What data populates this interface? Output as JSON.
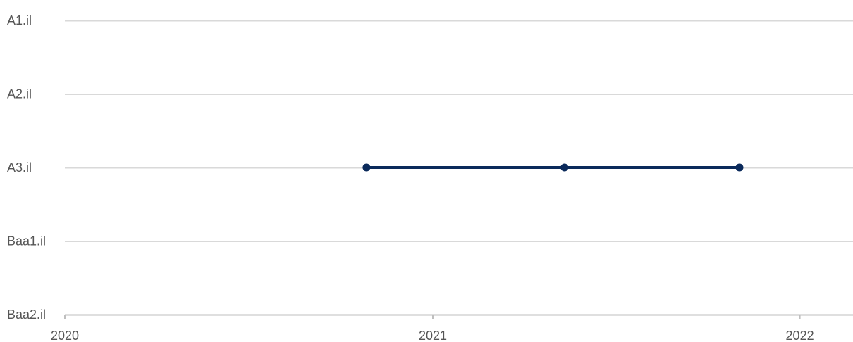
{
  "chart_data": {
    "type": "line",
    "x_type": "date",
    "y_type": "categorical",
    "y_categories": [
      "A1.il",
      "A2.il",
      "A3.il",
      "Baa1.il",
      "Baa2.il"
    ],
    "x_ticks": [
      2020,
      2021,
      2022
    ],
    "x_tick_labels": [
      "2020",
      "2021",
      "2022"
    ],
    "xlim": [
      "2020-01-01",
      "2022-03-01"
    ],
    "series": [
      {
        "color": "#0b2a5b",
        "points": [
          {
            "x": "2020-10-27",
            "y": "A3.il"
          },
          {
            "x": "2021-05-12",
            "y": "A3.il"
          },
          {
            "x": "2021-11-02",
            "y": "A3.il"
          }
        ]
      }
    ],
    "grid": true,
    "colors": {
      "gridline": "#d9d9d9",
      "axis": "#bfbfbf",
      "text": "#555555",
      "series": "#0b2a5b"
    }
  }
}
